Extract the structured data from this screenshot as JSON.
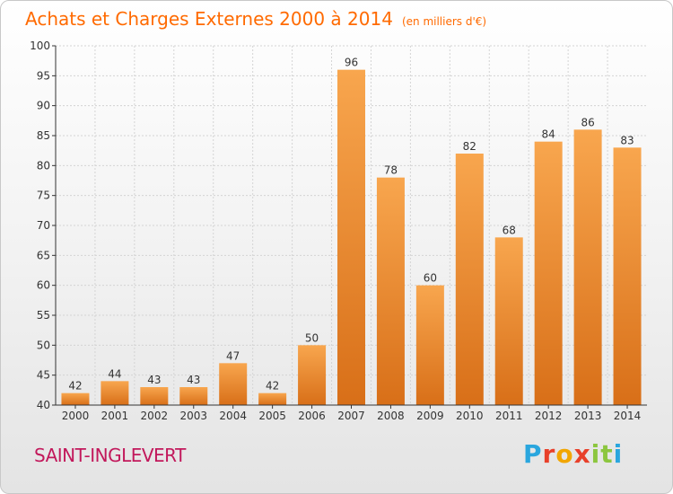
{
  "title": "Achats et Charges Externes 2000 à 2014",
  "unit": "(en milliers d'€)",
  "commune": "SAINT-INGLEVERT",
  "logo": {
    "letters": [
      "P",
      "r",
      "o",
      "x",
      "i",
      "t",
      "i"
    ],
    "colors": [
      "#2aa6de",
      "#e8402a",
      "#f2a600",
      "#e8402a",
      "#8cc63f",
      "#8cc63f",
      "#2aa6de"
    ]
  },
  "colors": {
    "title": "#ff6a00",
    "commune": "#c2185b",
    "bar_top": "#f8a64e",
    "bar_bottom": "#d86f18",
    "grid": "#d4d4d4",
    "axis": "#333333"
  },
  "chart_data": {
    "type": "bar",
    "categories": [
      "2000",
      "2001",
      "2002",
      "2003",
      "2004",
      "2005",
      "2006",
      "2007",
      "2008",
      "2009",
      "2010",
      "2011",
      "2012",
      "2013",
      "2014"
    ],
    "values": [
      42,
      44,
      43,
      43,
      47,
      42,
      50,
      96,
      78,
      60,
      82,
      68,
      84,
      86,
      83
    ],
    "title": "Achats et Charges Externes 2000 à 2014",
    "ylim": [
      40,
      100
    ],
    "yticks": [
      40,
      45,
      50,
      55,
      60,
      65,
      70,
      75,
      80,
      85,
      90,
      95,
      100
    ],
    "grid": true,
    "data_labels": true
  }
}
